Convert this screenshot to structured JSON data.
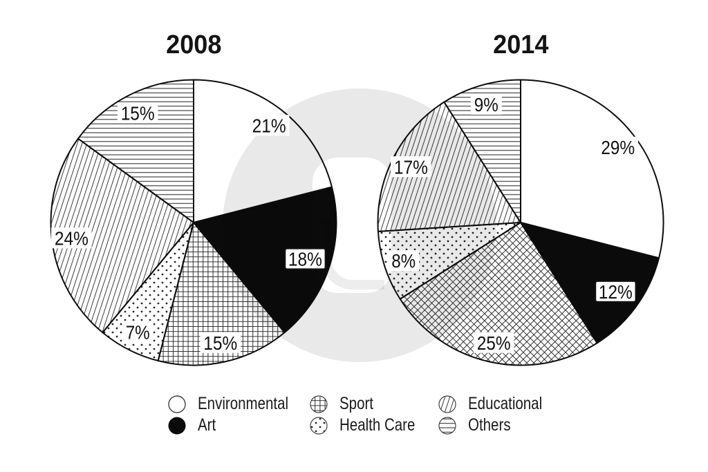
{
  "chart_data": [
    {
      "type": "pie",
      "title": "2008",
      "values_unit": "percent",
      "start": "12-oclock",
      "direction": "clockwise",
      "slices": [
        {
          "category": "Environmental",
          "value": 21,
          "label": "21%",
          "pattern": "plain-white"
        },
        {
          "category": "Art",
          "value": 18,
          "label": "18%",
          "pattern": "solid-black",
          "boxed_label": true
        },
        {
          "category": "Sport",
          "value": 15,
          "label": "15%",
          "pattern": "crosshatch-grid"
        },
        {
          "category": "Health Care",
          "value": 7,
          "label": "7%",
          "pattern": "dots"
        },
        {
          "category": "Educational",
          "value": 24,
          "label": "24%",
          "pattern": "diagonal-lines"
        },
        {
          "category": "Others",
          "value": 15,
          "label": "15%",
          "pattern": "horizontal-lines"
        }
      ]
    },
    {
      "type": "pie",
      "title": "2014",
      "values_unit": "percent",
      "start": "12-oclock",
      "direction": "clockwise",
      "slices": [
        {
          "category": "Environmental",
          "value": 29,
          "label": "29%",
          "pattern": "plain-white"
        },
        {
          "category": "Art",
          "value": 12,
          "label": "12%",
          "pattern": "solid-black",
          "boxed_label": true
        },
        {
          "category": "Sport",
          "value": 25,
          "label": "25%",
          "pattern": "crosshatch-diamond"
        },
        {
          "category": "Health Care",
          "value": 8,
          "label": "8%",
          "pattern": "dots"
        },
        {
          "category": "Educational",
          "value": 17,
          "label": "17%",
          "pattern": "diagonal-lines"
        },
        {
          "category": "Others",
          "value": 9,
          "label": "9%",
          "pattern": "horizontal-lines"
        }
      ]
    }
  ],
  "legend": {
    "position": "bottom-center",
    "items": [
      {
        "label": "Environmental",
        "pattern": "plain-white"
      },
      {
        "label": "Art",
        "pattern": "solid-black"
      },
      {
        "label": "Sport",
        "pattern": "crosshatch-grid"
      },
      {
        "label": "Health Care",
        "pattern": "dots"
      },
      {
        "label": "Educational",
        "pattern": "diagonal-lines"
      },
      {
        "label": "Others",
        "pattern": "horizontal-lines"
      }
    ]
  },
  "colors": {
    "background": "#ffffff",
    "ink": "#111111",
    "slice_black": "#0b0b0b",
    "pattern_line": "#303030",
    "watermark_tint": "rgba(0,0,0,0.085)"
  }
}
